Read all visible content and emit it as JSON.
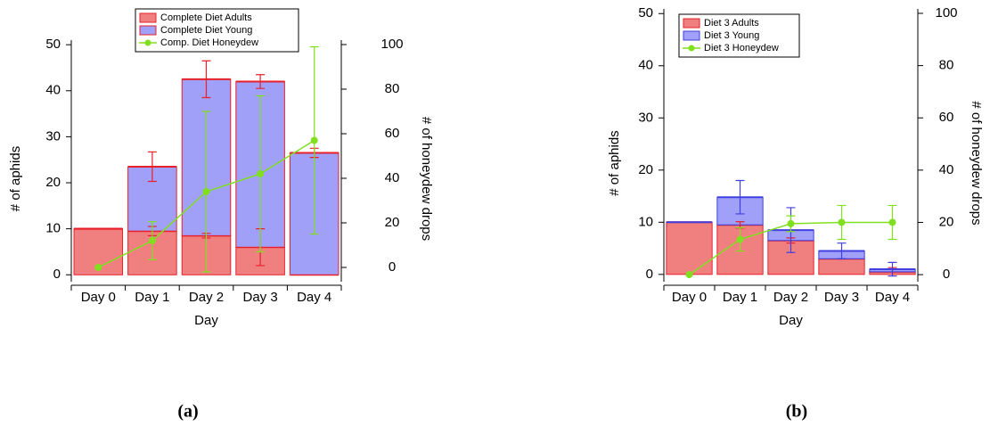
{
  "chart_data": [
    {
      "type": "bar",
      "panel_label": "(a)",
      "x_label": "Day",
      "y_label": "# of aphids",
      "y2_label": "# of honeydew drops",
      "categories": [
        "Day 0",
        "Day 1",
        "Day 2",
        "Day 3",
        "Day 4"
      ],
      "ylim": [
        -1.5,
        51
      ],
      "yticks": [
        0,
        10,
        20,
        30,
        40,
        50
      ],
      "y2lim": [
        -6.4,
        102
      ],
      "y2ticks": [
        0,
        20,
        40,
        60,
        80,
        100
      ],
      "series": [
        {
          "name": "Complete Diet Adults",
          "type": "bar",
          "color": "#f08080",
          "edgecolor": "#e8202a",
          "values": [
            10,
            9.5,
            8.5,
            6,
            0
          ],
          "errors": [
            0,
            1,
            0.5,
            4,
            0
          ]
        },
        {
          "name": "Complete Diet Young",
          "type": "bar",
          "color": "#a0a0f8",
          "edgecolor": "#e8202a",
          "values": [
            0,
            14,
            34,
            36,
            26.5
          ],
          "errors": [
            0,
            3.2,
            4,
            1.5,
            1
          ]
        },
        {
          "name": "Comp. Diet Honeydew",
          "type": "line",
          "axis": "y2",
          "color": "#80e020",
          "values": [
            0,
            12,
            34,
            42,
            57
          ],
          "errors": [
            0,
            8.5,
            36,
            35,
            42
          ]
        }
      ]
    },
    {
      "type": "bar",
      "panel_label": "(b)",
      "x_label": "Day",
      "y_label": "# of aphids",
      "y2_label": "# of honeydew drops",
      "categories": [
        "Day 0",
        "Day 1",
        "Day 2",
        "Day 3",
        "Day 4"
      ],
      "ylim": [
        -1.4,
        50.9
      ],
      "yticks": [
        0,
        10,
        20,
        30,
        40,
        50
      ],
      "y2lim": [
        -2.7,
        101.7
      ],
      "y2ticks": [
        0,
        20,
        40,
        60,
        80,
        100
      ],
      "series": [
        {
          "name": "Diet 3 Adults",
          "type": "bar",
          "color": "#f08080",
          "edgecolor": "#e8202a",
          "values": [
            10,
            9.5,
            6.5,
            3,
            0.5
          ],
          "errors": [
            0,
            0.6,
            0.5,
            0,
            0.8
          ]
        },
        {
          "name": "Diet 3 Young",
          "type": "bar",
          "color": "#a0a0f8",
          "edgecolor": "#4040e0",
          "values": [
            0,
            5.3,
            2,
            1.5,
            0.5
          ],
          "errors": [
            0,
            3.2,
            4.3,
            1.5,
            1.3
          ]
        },
        {
          "name": "Diet 3 Honeydew",
          "type": "line",
          "axis": "y2",
          "color": "#80e020",
          "values": [
            0,
            13.5,
            19.5,
            20,
            20
          ],
          "errors": [
            0,
            4.5,
            3,
            6.5,
            6.5
          ]
        }
      ]
    }
  ]
}
